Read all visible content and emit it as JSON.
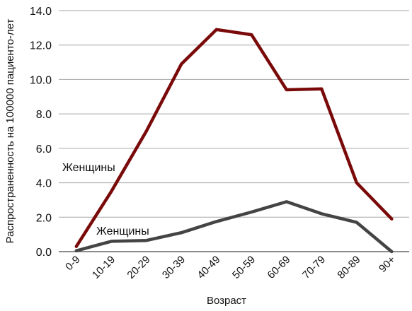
{
  "chart_data": {
    "type": "line",
    "categories": [
      "0-9",
      "10-19",
      "20-29",
      "30-39",
      "40-49",
      "50-59",
      "60-69",
      "70-79",
      "80-89",
      "90+"
    ],
    "series": [
      {
        "name": "Женщины",
        "color": "#7a0a0a",
        "values": [
          0.3,
          3.5,
          7.0,
          10.9,
          12.9,
          12.6,
          9.4,
          9.45,
          4.0,
          1.9
        ]
      },
      {
        "name": "Женщины",
        "color": "#444444",
        "values": [
          0.05,
          0.6,
          0.65,
          1.1,
          1.75,
          2.3,
          2.9,
          2.2,
          1.7,
          0.0
        ]
      }
    ],
    "y_ticks": [
      "0.0",
      "2.0",
      "4.0",
      "6.0",
      "8.0",
      "10.0",
      "12.0",
      "14.0"
    ],
    "ylim": [
      0,
      14
    ],
    "xlabel": "Возраст",
    "ylabel": "Распространенность на 100000 пациенто-лет",
    "grid": true
  }
}
